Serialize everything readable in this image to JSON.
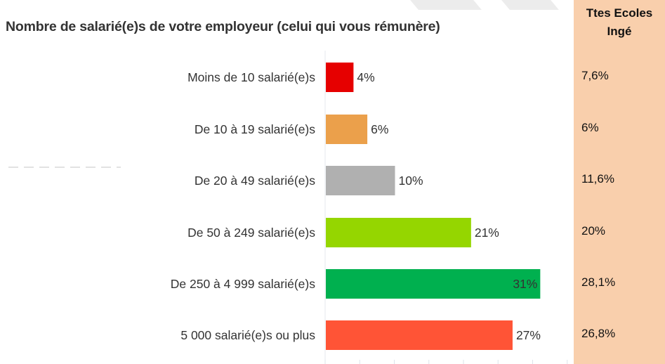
{
  "chart_data": {
    "type": "bar",
    "orientation": "horizontal",
    "title": "Nombre de salarié(e)s de votre employeur (celui qui vous rémunère)",
    "categories": [
      "Moins de 10 salarié(e)s",
      "De 10 à 19 salarié(e)s",
      "De 20 à 49 salarié(e)s",
      "De 50 à 249 salarié(e)s",
      "De 250 à 4 999 salarié(e)s",
      "5 000 salarié(e)s ou plus"
    ],
    "values": [
      4,
      6,
      10,
      21,
      31,
      27
    ],
    "labels": [
      "4%",
      "6%",
      "10%",
      "21%",
      "31%",
      "27%"
    ],
    "colors": [
      "#e60000",
      "#eba04b",
      "#b0b0b0",
      "#95d600",
      "#00b04f",
      "#ff5436"
    ],
    "unit": "%",
    "xlim": [
      0,
      35
    ],
    "comparison": {
      "header": [
        "Ttes Ecoles",
        "Ingé"
      ],
      "values": [
        "7,6%",
        "6%",
        "11,6%",
        "20%",
        "28,1%",
        "26,8%"
      ]
    }
  }
}
